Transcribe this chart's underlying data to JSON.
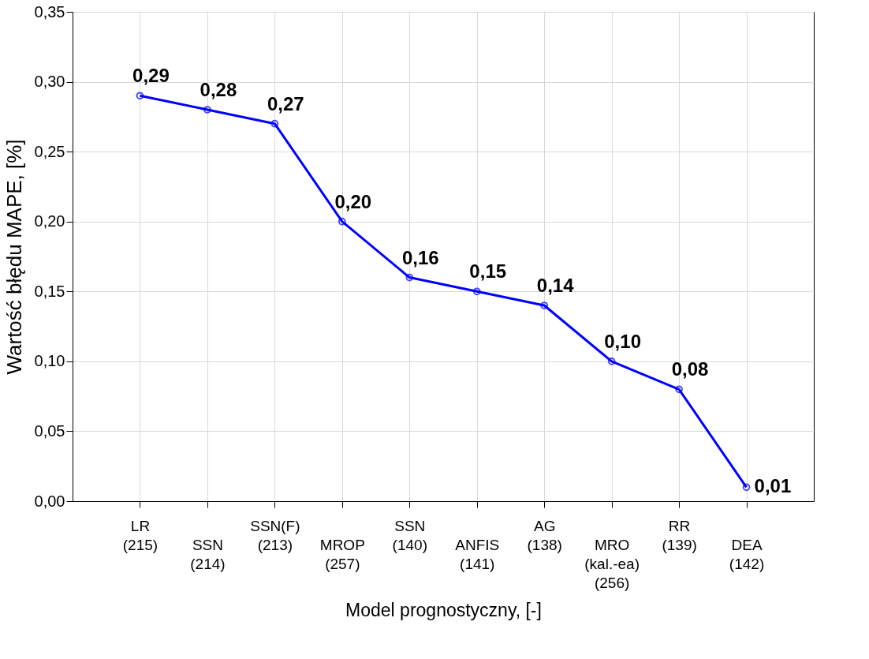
{
  "chart_data": {
    "type": "line",
    "xlabel": "Model prognostyczny, [-]",
    "ylabel": "Wartość błędu MAPE, [%]",
    "categories": [
      "LR\n(215)",
      "SSN\n(214)",
      "SSN(F)\n(213)",
      "MROP\n(257)",
      "SSN\n(140)",
      "ANFIS\n(141)",
      "AG\n(138)",
      "MRO\n(kal.-ea)\n(256)",
      "RR\n(139)",
      "DEA\n(142)"
    ],
    "series": [
      {
        "color": "#0000ff",
        "values": [
          0.29,
          0.28,
          0.27,
          0.2,
          0.16,
          0.15,
          0.14,
          0.1,
          0.08,
          0.01
        ],
        "value_labels": [
          "0,29",
          "0,28",
          "0,27",
          "0,20",
          "0,16",
          "0,15",
          "0,14",
          "0,10",
          "0,08",
          "0,01"
        ]
      }
    ],
    "ylim": [
      0,
      0.35
    ],
    "yticks": [
      {
        "value": 0,
        "label": "0,00"
      },
      {
        "value": 0.05,
        "label": "0,05"
      },
      {
        "value": 0.1,
        "label": "0,10"
      },
      {
        "value": 0.15,
        "label": "0,15"
      },
      {
        "value": 0.2,
        "label": "0,20"
      },
      {
        "value": 0.25,
        "label": "0,25"
      },
      {
        "value": 0.3,
        "label": "0,30"
      },
      {
        "value": 0.35,
        "label": "0,35"
      }
    ],
    "grid": true,
    "marker": "circle",
    "line_style": "solid"
  }
}
